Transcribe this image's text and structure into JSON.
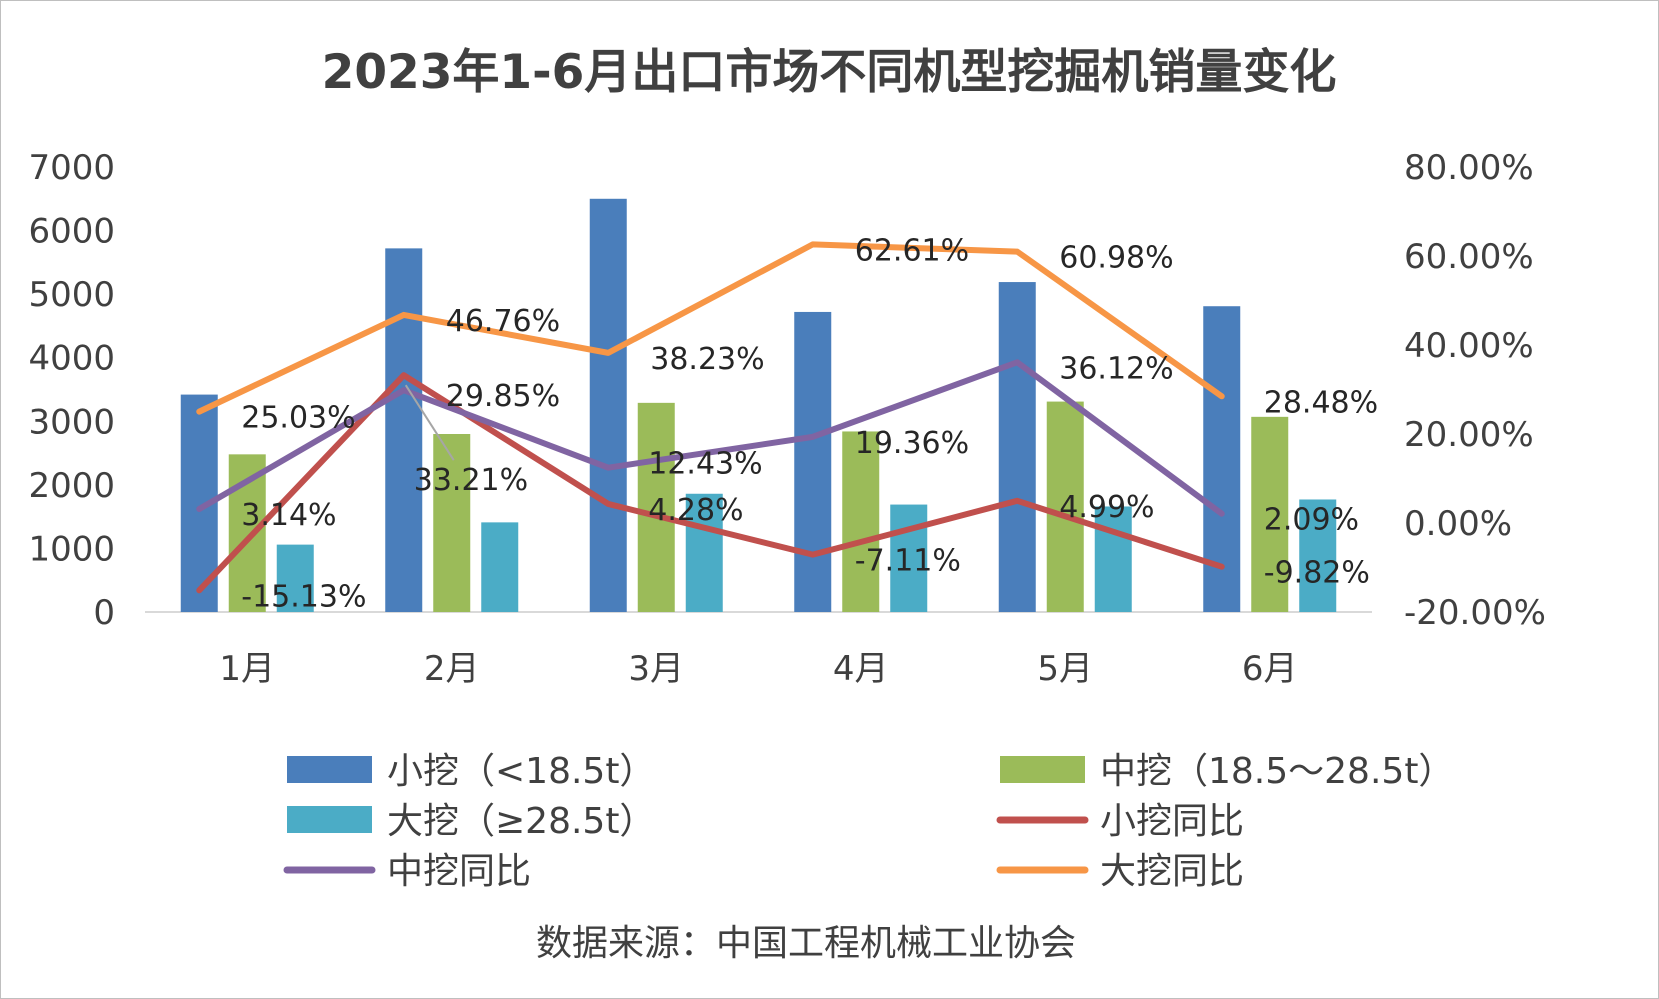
{
  "chart_data": {
    "type": "bar",
    "title": "2023年1-6月出口市场不同机型挖掘机销量变化",
    "categories": [
      "1月",
      "2月",
      "3月",
      "4月",
      "5月",
      "6月"
    ],
    "ylim": [
      0,
      7000
    ],
    "yticks": [
      "7000",
      "6000",
      "5000",
      "4000",
      "3000",
      "2000",
      "1000",
      "0"
    ],
    "y2lim": [
      -20,
      80
    ],
    "y2ticks": [
      "80.00%",
      "60.00%",
      "40.00%",
      "20.00%",
      "0.00%",
      "-20.00%"
    ],
    "bar_series": [
      {
        "name": "小挖（<18.5t）",
        "color": "#4a7ebb",
        "values": [
          3420,
          5720,
          6500,
          4720,
          5190,
          4810
        ]
      },
      {
        "name": "中挖（18.5～28.5t）",
        "color": "#9bbb59",
        "values": [
          2480,
          2800,
          3290,
          2840,
          3310,
          3070
        ]
      },
      {
        "name": "大挖（≥28.5t）",
        "color": "#4bacc6",
        "values": [
          1060,
          1410,
          1860,
          1690,
          1660,
          1770
        ]
      }
    ],
    "line_series": [
      {
        "name": "小挖同比",
        "color": "#c0504d",
        "values": [
          -15.13,
          33.21,
          4.28,
          -7.11,
          4.99,
          -9.82
        ],
        "labels": [
          "-15.13%",
          "33.21%",
          "4.28%",
          "-7.11%",
          "4.99%",
          "-9.82%"
        ]
      },
      {
        "name": "中挖同比",
        "color": "#8064a2",
        "values": [
          3.14,
          29.85,
          12.43,
          19.36,
          36.12,
          2.09
        ],
        "labels": [
          "3.14%",
          "29.85%",
          "12.43%",
          "19.36%",
          "36.12%",
          "2.09%"
        ]
      },
      {
        "name": "大挖同比",
        "color": "#f79646",
        "values": [
          25.03,
          46.76,
          38.23,
          62.61,
          60.98,
          28.48
        ],
        "labels": [
          "25.03%",
          "46.76%",
          "38.23%",
          "62.61%",
          "60.98%",
          "28.48%"
        ]
      }
    ],
    "legend_position": "bottom",
    "grid": false,
    "source": "数据来源：中国工程机械工业协会"
  }
}
